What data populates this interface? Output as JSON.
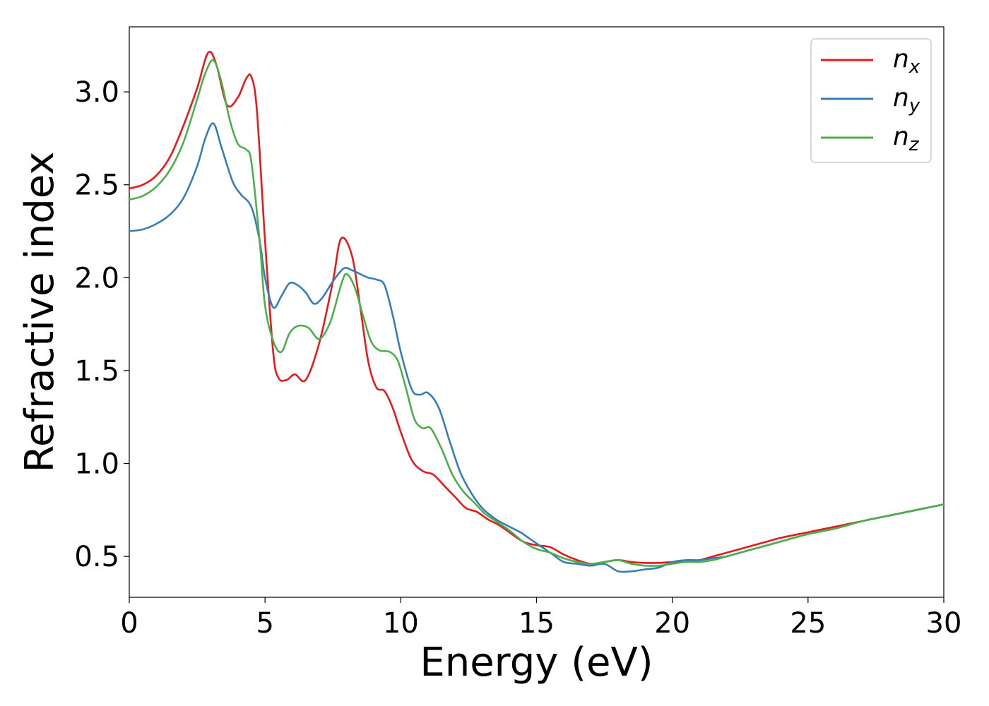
{
  "chart_data": {
    "type": "line",
    "xlabel": "Energy (eV)",
    "ylabel": "Refractive index",
    "xlim": [
      0,
      30
    ],
    "ylim": [
      0.28,
      3.35
    ],
    "xticks": [
      0,
      5,
      10,
      15,
      20,
      25,
      30
    ],
    "xtick_labels": [
      "0",
      "5",
      "10",
      "15",
      "20",
      "25",
      "30"
    ],
    "yticks": [
      0.5,
      1.0,
      1.5,
      2.0,
      2.5,
      3.0
    ],
    "ytick_labels": [
      "0.5",
      "1.0",
      "1.5",
      "2.0",
      "2.5",
      "3.0"
    ],
    "grid": false,
    "legend_position": "top-right",
    "series": [
      {
        "name": "n",
        "subscript": "x",
        "color": "#e41a1c",
        "x": [
          0,
          0.5,
          1.0,
          1.5,
          2.0,
          2.5,
          2.9,
          3.2,
          3.6,
          4.0,
          4.3,
          4.5,
          4.7,
          5.0,
          5.3,
          5.5,
          5.8,
          6.1,
          6.5,
          7.0,
          7.5,
          7.8,
          8.2,
          8.5,
          8.8,
          9.1,
          9.4,
          9.7,
          10.0,
          10.4,
          10.8,
          11.2,
          11.6,
          12.0,
          12.4,
          12.8,
          13.2,
          13.6,
          14.0,
          14.5,
          15.0,
          15.5,
          16.0,
          16.5,
          17.0,
          17.5,
          18.0,
          18.5,
          19.0,
          19.5,
          20.0,
          20.5,
          21.0,
          21.5,
          22.0,
          22.5,
          23.0,
          23.5,
          24.0,
          25.0,
          26.0,
          27.0,
          28.0,
          29.0,
          30.0
        ],
        "values": [
          2.48,
          2.5,
          2.55,
          2.65,
          2.82,
          3.02,
          3.21,
          3.15,
          2.93,
          2.97,
          3.07,
          3.08,
          2.9,
          2.2,
          1.6,
          1.46,
          1.45,
          1.48,
          1.45,
          1.65,
          1.98,
          2.21,
          2.12,
          1.85,
          1.55,
          1.41,
          1.39,
          1.3,
          1.17,
          1.02,
          0.96,
          0.94,
          0.88,
          0.82,
          0.76,
          0.74,
          0.7,
          0.67,
          0.63,
          0.58,
          0.56,
          0.55,
          0.51,
          0.48,
          0.46,
          0.47,
          0.48,
          0.47,
          0.465,
          0.465,
          0.47,
          0.47,
          0.48,
          0.5,
          0.52,
          0.54,
          0.56,
          0.58,
          0.6,
          0.63,
          0.66,
          0.69,
          0.72,
          0.75,
          0.78
        ]
      },
      {
        "name": "n",
        "subscript": "y",
        "color": "#377eb8",
        "x": [
          0,
          0.5,
          1.0,
          1.5,
          2.0,
          2.5,
          2.8,
          3.1,
          3.4,
          3.8,
          4.1,
          4.5,
          4.8,
          5.0,
          5.3,
          5.6,
          5.9,
          6.2,
          6.5,
          6.8,
          7.1,
          7.5,
          7.9,
          8.2,
          8.5,
          8.8,
          9.1,
          9.4,
          9.7,
          10.0,
          10.4,
          10.7,
          11.0,
          11.4,
          11.8,
          12.2,
          12.6,
          13.0,
          13.5,
          14.0,
          14.4,
          14.8,
          15.2,
          15.6,
          16.0,
          16.5,
          17.0,
          17.5,
          18.0,
          18.5,
          19.0,
          19.5,
          20.0,
          20.5,
          21.0,
          21.5,
          22.0,
          22.5,
          23.0,
          23.5,
          24.0,
          25.0,
          26.0,
          27.0,
          28.0,
          29.0,
          30.0
        ],
        "values": [
          2.25,
          2.26,
          2.29,
          2.34,
          2.43,
          2.6,
          2.75,
          2.83,
          2.7,
          2.52,
          2.45,
          2.38,
          2.2,
          2.0,
          1.84,
          1.9,
          1.97,
          1.96,
          1.92,
          1.86,
          1.89,
          1.98,
          2.05,
          2.04,
          2.02,
          2.0,
          1.99,
          1.96,
          1.8,
          1.6,
          1.4,
          1.37,
          1.38,
          1.3,
          1.12,
          0.95,
          0.84,
          0.76,
          0.7,
          0.66,
          0.63,
          0.59,
          0.55,
          0.51,
          0.47,
          0.46,
          0.45,
          0.46,
          0.42,
          0.42,
          0.43,
          0.44,
          0.47,
          0.48,
          0.48,
          0.49,
          0.5,
          0.52,
          0.54,
          0.56,
          0.58,
          0.62,
          0.65,
          0.69,
          0.72,
          0.75,
          0.78
        ]
      },
      {
        "name": "n",
        "subscript": "z",
        "color": "#4daf4a",
        "x": [
          0,
          0.5,
          1.0,
          1.5,
          2.0,
          2.5,
          2.8,
          3.1,
          3.4,
          3.7,
          4.0,
          4.3,
          4.5,
          4.8,
          5.0,
          5.3,
          5.6,
          5.9,
          6.2,
          6.6,
          7.0,
          7.4,
          7.8,
          8.0,
          8.3,
          8.6,
          8.9,
          9.2,
          9.6,
          9.9,
          10.2,
          10.5,
          10.8,
          11.1,
          11.5,
          11.9,
          12.3,
          12.7,
          13.1,
          13.5,
          14.0,
          14.5,
          15.0,
          15.5,
          16.0,
          16.5,
          17.0,
          17.5,
          18.0,
          18.5,
          19.0,
          19.5,
          20.0,
          20.5,
          21.0,
          21.5,
          22.0,
          22.5,
          23.0,
          23.5,
          24.0,
          25.0,
          26.0,
          27.0,
          28.0,
          29.0,
          30.0
        ],
        "values": [
          2.42,
          2.44,
          2.49,
          2.58,
          2.73,
          2.96,
          3.1,
          3.17,
          3.05,
          2.85,
          2.72,
          2.69,
          2.62,
          2.2,
          1.85,
          1.66,
          1.6,
          1.7,
          1.74,
          1.73,
          1.67,
          1.76,
          1.96,
          2.02,
          1.95,
          1.8,
          1.66,
          1.61,
          1.6,
          1.55,
          1.4,
          1.24,
          1.19,
          1.19,
          1.08,
          0.94,
          0.85,
          0.79,
          0.73,
          0.69,
          0.64,
          0.58,
          0.54,
          0.52,
          0.49,
          0.47,
          0.46,
          0.47,
          0.48,
          0.46,
          0.45,
          0.45,
          0.46,
          0.47,
          0.47,
          0.48,
          0.5,
          0.52,
          0.54,
          0.56,
          0.58,
          0.62,
          0.65,
          0.69,
          0.72,
          0.75,
          0.78
        ]
      }
    ]
  }
}
